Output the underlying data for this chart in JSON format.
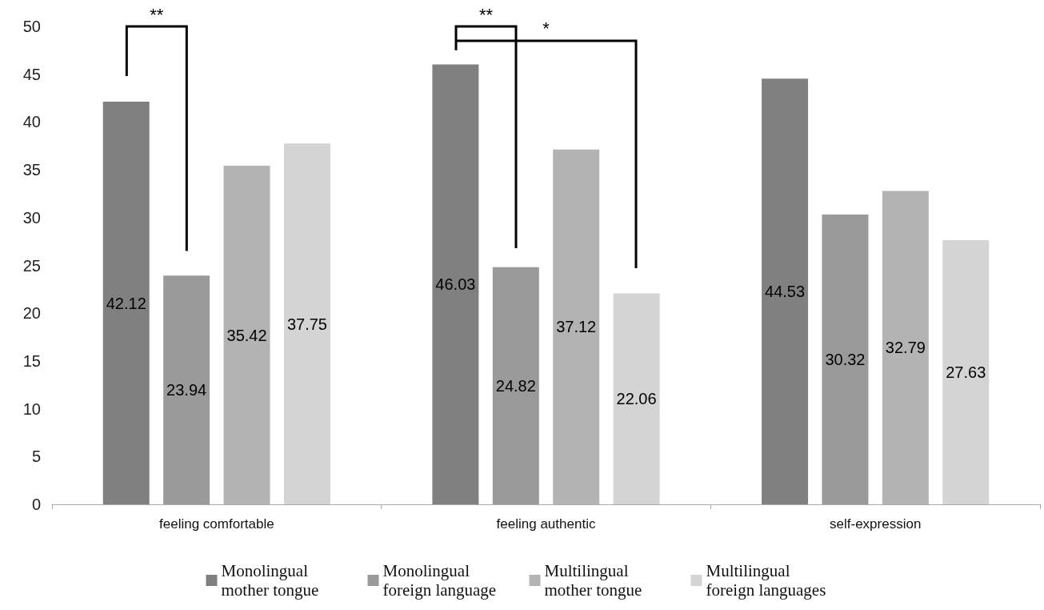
{
  "chart_data": {
    "type": "bar",
    "categories": [
      "feeling comfortable",
      "feeling authentic",
      "self-expression"
    ],
    "series": [
      {
        "name": "Monolingual mother tongue",
        "color": "#808080",
        "values": [
          42.12,
          46.03,
          44.53
        ]
      },
      {
        "name": "Monolingual foreign language",
        "color": "#9a9a9a",
        "values": [
          23.94,
          24.82,
          30.32
        ]
      },
      {
        "name": "Multilingual mother tongue",
        "color": "#b3b3b3",
        "values": [
          35.42,
          37.12,
          32.79
        ]
      },
      {
        "name": "Multilingual foreign languages",
        "color": "#d4d4d4",
        "values": [
          37.75,
          22.06,
          27.63
        ]
      }
    ],
    "ylim": [
      0,
      50
    ],
    "yticks": [
      0,
      5,
      10,
      15,
      20,
      25,
      30,
      35,
      40,
      45,
      50
    ],
    "grid": false,
    "legend": "bottom",
    "data_labels": true,
    "annotations": [
      "**",
      "**",
      "*"
    ]
  }
}
